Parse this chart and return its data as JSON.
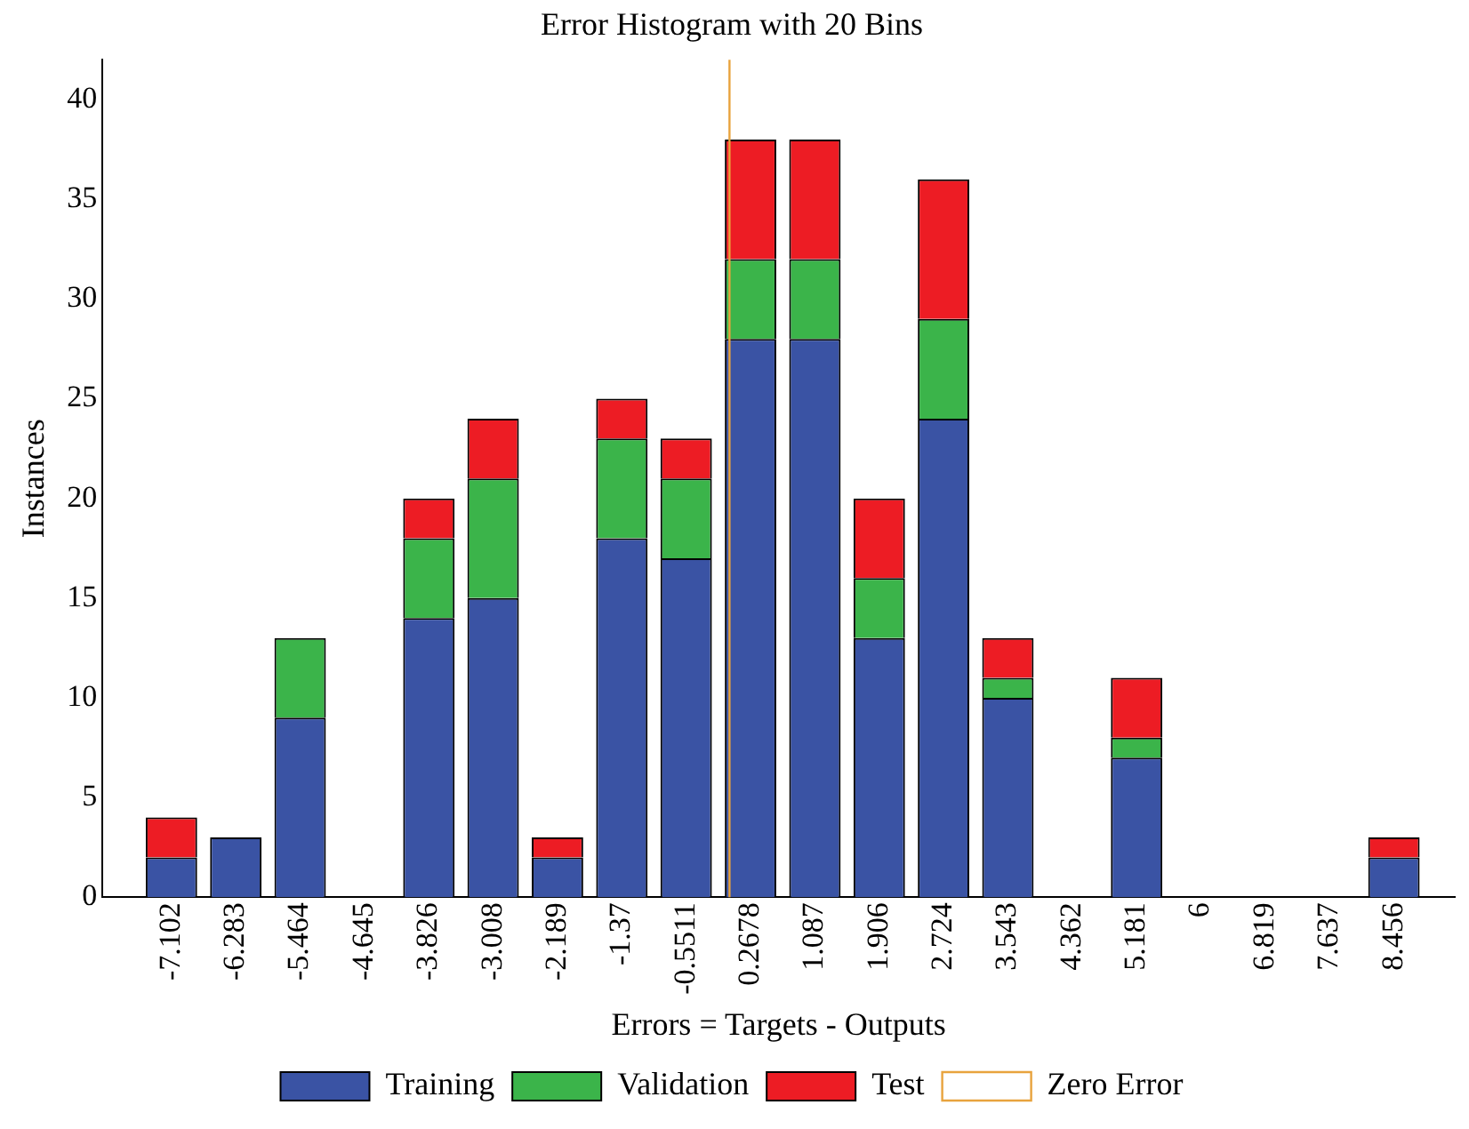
{
  "chart_data": {
    "type": "bar",
    "title": "Error Histogram with 20 Bins",
    "xlabel": "Errors = Targets - Outputs",
    "ylabel": "Instances",
    "x": [
      -7.102,
      -6.283,
      -5.464,
      -4.645,
      -3.826,
      -3.008,
      -2.189,
      -1.37,
      -0.5511,
      0.2678,
      1.087,
      1.906,
      2.724,
      3.543,
      4.362,
      5.181,
      6,
      6.819,
      7.637,
      8.456
    ],
    "series": [
      {
        "name": "Training",
        "color": "#3a53a4",
        "values": [
          2,
          3,
          9,
          0,
          14,
          15,
          2,
          18,
          17,
          28,
          28,
          13,
          24,
          10,
          0,
          7,
          0,
          0,
          0,
          2
        ]
      },
      {
        "name": "Validation",
        "color": "#3bb44a",
        "values": [
          0,
          0,
          4,
          0,
          4,
          6,
          0,
          5,
          4,
          4,
          4,
          3,
          5,
          1,
          0,
          1,
          0,
          0,
          0,
          0
        ]
      },
      {
        "name": "Test",
        "color": "#ed1c24",
        "values": [
          2,
          0,
          0,
          0,
          2,
          3,
          1,
          2,
          2,
          6,
          6,
          4,
          7,
          2,
          0,
          3,
          0,
          0,
          0,
          1
        ]
      }
    ],
    "stacked": true,
    "xlim": [
      -7.55,
      8.8
    ],
    "xticks": [
      -7.102,
      -6.283,
      -5.464,
      -4.645,
      -3.826,
      -3.008,
      -2.189,
      -1.37,
      -0.5511,
      0.2678,
      1.087,
      1.906,
      2.724,
      3.543,
      4.362,
      5.181,
      6,
      6.819,
      7.637,
      8.456
    ],
    "ylim": [
      0,
      42
    ],
    "yticks": [
      0,
      5,
      10,
      15,
      20,
      25,
      30,
      35,
      40
    ],
    "ref_lines": [
      {
        "axis": "x",
        "value": 0,
        "label": "Zero Error",
        "color": "#e8a33d"
      }
    ],
    "legend": "bottom",
    "grid": false
  }
}
